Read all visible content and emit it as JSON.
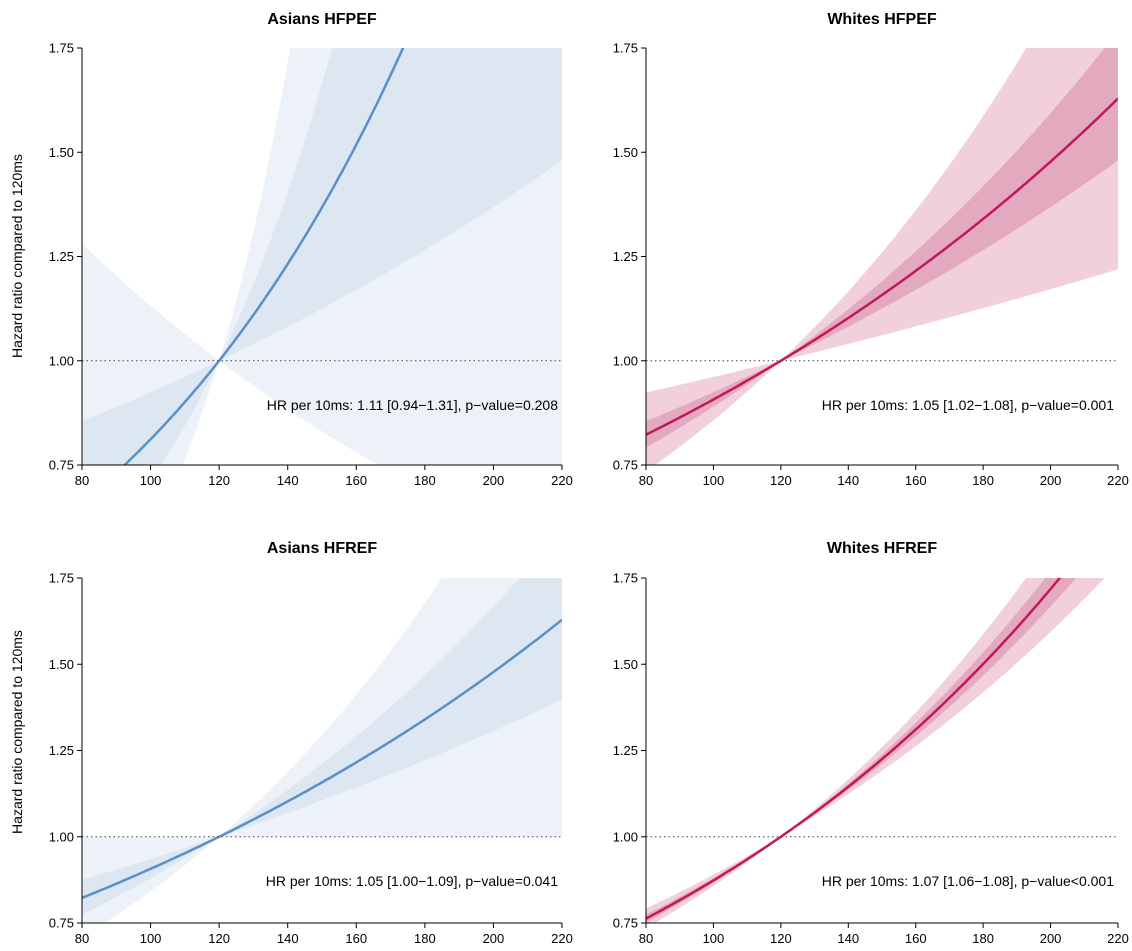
{
  "figure": {
    "ylabel": "Hazard ratio compared to 120ms"
  },
  "chart_data": [
    {
      "type": "line",
      "title": "Asians HFPEF",
      "ylabel": "Hazard ratio compared to 120ms",
      "xlim": [
        80,
        220
      ],
      "ylim": [
        0.75,
        1.75
      ],
      "xticks": [
        "80",
        "100",
        "120",
        "140",
        "160",
        "180",
        "200",
        "220"
      ],
      "yticks": [
        "0.75",
        "1.00",
        "1.25",
        "1.50",
        "1.75"
      ],
      "reference_line": 1.0,
      "annotation": "HR per 10ms: 1.11 [0.94−1.31], p−value=0.208",
      "color": "#5b8fc7",
      "band_inner_color": "#dce7f2",
      "band_outer_color": "#edf2f8",
      "reference_x": 120,
      "hr_per10": 1.11,
      "inner_ci_per10": [
        1.04,
        1.185
      ],
      "outer_ci_per10": [
        0.94,
        1.31
      ]
    },
    {
      "type": "line",
      "title": "Whites HFPEF",
      "ylabel": "",
      "xlim": [
        80,
        220
      ],
      "ylim": [
        0.75,
        1.75
      ],
      "xticks": [
        "80",
        "100",
        "120",
        "140",
        "160",
        "180",
        "200",
        "220"
      ],
      "yticks": [
        "0.75",
        "1.00",
        "1.25",
        "1.50",
        "1.75"
      ],
      "reference_line": 1.0,
      "annotation": "HR per 10ms: 1.05 [1.02−1.08], p−value=0.001",
      "color": "#c2185b",
      "band_inner_color": "#e3a9bf",
      "band_outer_color": "#f1d0dc",
      "reference_x": 120,
      "hr_per10": 1.05,
      "inner_ci_per10": [
        1.04,
        1.06
      ],
      "outer_ci_per10": [
        1.02,
        1.08
      ]
    },
    {
      "type": "line",
      "title": "Asians HFREF",
      "ylabel": "Hazard ratio compared to 120ms",
      "xlim": [
        80,
        220
      ],
      "ylim": [
        0.75,
        1.75
      ],
      "xticks": [
        "80",
        "100",
        "120",
        "140",
        "160",
        "180",
        "200",
        "220"
      ],
      "yticks": [
        "0.75",
        "1.00",
        "1.25",
        "1.50",
        "1.75"
      ],
      "reference_line": 1.0,
      "annotation": "HR per 10ms: 1.05 [1.00−1.09], p−value=0.041",
      "color": "#5b8fc7",
      "band_inner_color": "#dce7f2",
      "band_outer_color": "#edf2f8",
      "reference_x": 120,
      "hr_per10": 1.05,
      "inner_ci_per10": [
        1.034,
        1.066
      ],
      "outer_ci_per10": [
        1.0,
        1.09
      ]
    },
    {
      "type": "line",
      "title": "Whites HFREF",
      "ylabel": "",
      "xlim": [
        80,
        220
      ],
      "ylim": [
        0.75,
        1.75
      ],
      "xticks": [
        "80",
        "100",
        "120",
        "140",
        "160",
        "180",
        "200",
        "220"
      ],
      "yticks": [
        "0.75",
        "1.00",
        "1.25",
        "1.50",
        "1.75"
      ],
      "reference_line": 1.0,
      "annotation": "HR per 10ms: 1.07 [1.06−1.08], p−value<0.001",
      "color": "#c2185b",
      "band_inner_color": "#e3a9bf",
      "band_outer_color": "#f1d0dc",
      "reference_x": 120,
      "hr_per10": 1.07,
      "inner_ci_per10": [
        1.066,
        1.074
      ],
      "outer_ci_per10": [
        1.06,
        1.08
      ]
    }
  ]
}
